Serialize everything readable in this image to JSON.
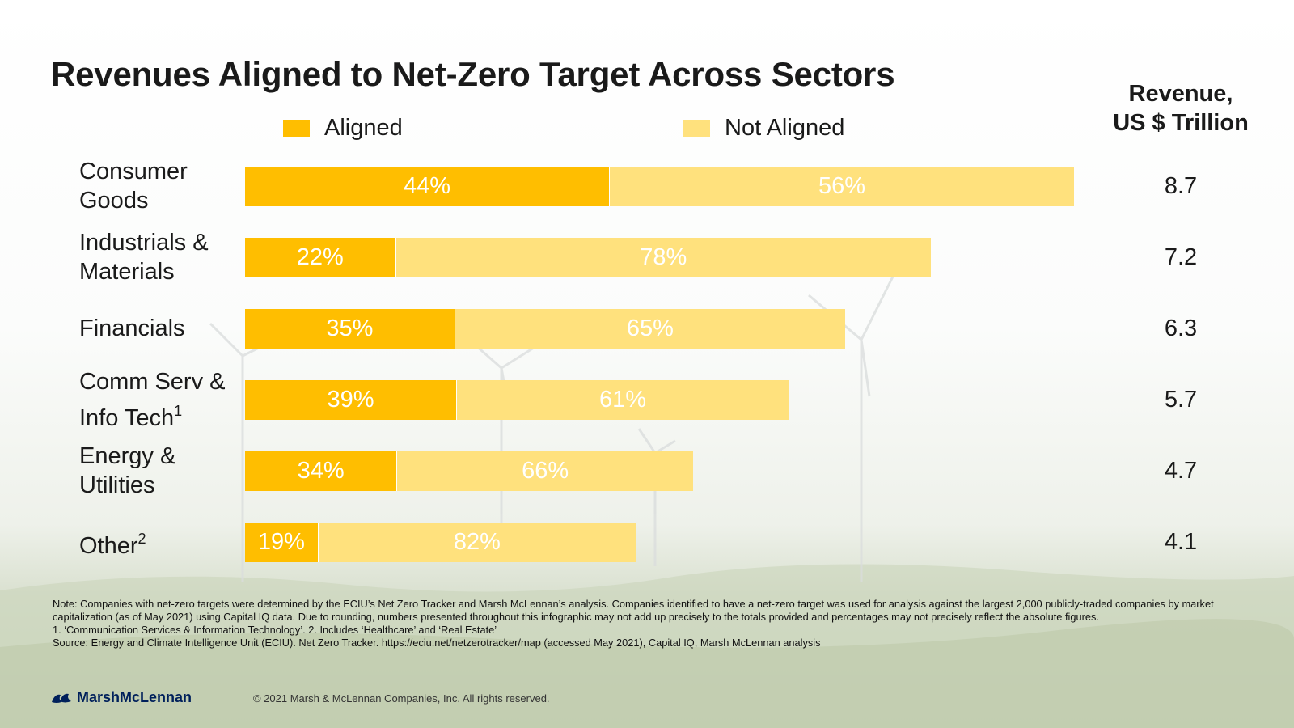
{
  "title": "Revenues Aligned to Net-Zero Target Across Sectors",
  "revenue_header": {
    "line1": "Revenue,",
    "line2": "US $ Trillion"
  },
  "colors": {
    "aligned": "#FFBE00",
    "not_aligned": "#FFE17D"
  },
  "chart_data": {
    "type": "bar",
    "orientation": "horizontal",
    "stacked": true,
    "title": "Revenues Aligned to Net-Zero Target Across Sectors",
    "categories": [
      "Consumer Goods",
      "Industrials & Materials",
      "Financials",
      "Comm Serv & Info Tech",
      "Energy & Utilities",
      "Other"
    ],
    "category_lines": [
      [
        "Consumer",
        "Goods"
      ],
      [
        "Industrials &",
        "Materials"
      ],
      [
        "Financials"
      ],
      [
        "Comm Serv &",
        "Info Tech"
      ],
      [
        "Energy &",
        "Utilities"
      ],
      [
        "Other"
      ]
    ],
    "category_footnotes": [
      "",
      "",
      "",
      "1",
      "",
      "2"
    ],
    "series": [
      {
        "name": "Aligned",
        "values": [
          44,
          22,
          35,
          39,
          34,
          19
        ],
        "labels": [
          "44%",
          "22%",
          "35%",
          "39%",
          "34%",
          "19%"
        ]
      },
      {
        "name": "Not Aligned",
        "values": [
          56,
          78,
          65,
          61,
          66,
          82
        ],
        "labels": [
          "56%",
          "78%",
          "65%",
          "61%",
          "66%",
          "82%"
        ]
      }
    ],
    "revenue_trillion_usd": [
      8.7,
      7.2,
      6.3,
      5.7,
      4.7,
      4.1
    ],
    "revenue_labels": [
      "8.7",
      "7.2",
      "6.3",
      "5.7",
      "4.7",
      "4.1"
    ],
    "legend": [
      "Aligned",
      "Not Aligned"
    ],
    "legend_position": "top"
  },
  "notes": {
    "note": "Note: Companies with net-zero targets were determined by the ECIU’s Net Zero Tracker and Marsh McLennan’s analysis. Companies identified to have a net-zero target was used for analysis against the largest 2,000 publicly-traded companies by market capitalization (as of May 2021) using Capital IQ data. Due to rounding, numbers presented throughout this infographic may not add up precisely to the totals provided and percentages may not precisely reflect the absolute figures.",
    "footnotes": "1. ‘Communication Services & Information Technology’. 2. Includes ‘Healthcare’ and ‘Real Estate’",
    "source": "Source: Energy and Climate Intelligence Unit (ECIU). Net Zero Tracker. https://eciu.net/netzerotracker/map (accessed May 2021), Capital IQ, Marsh McLennan analysis"
  },
  "footer": {
    "brand": "MarshMcLennan",
    "copyright": "© 2021 Marsh & McLennan Companies, Inc. All rights reserved."
  }
}
